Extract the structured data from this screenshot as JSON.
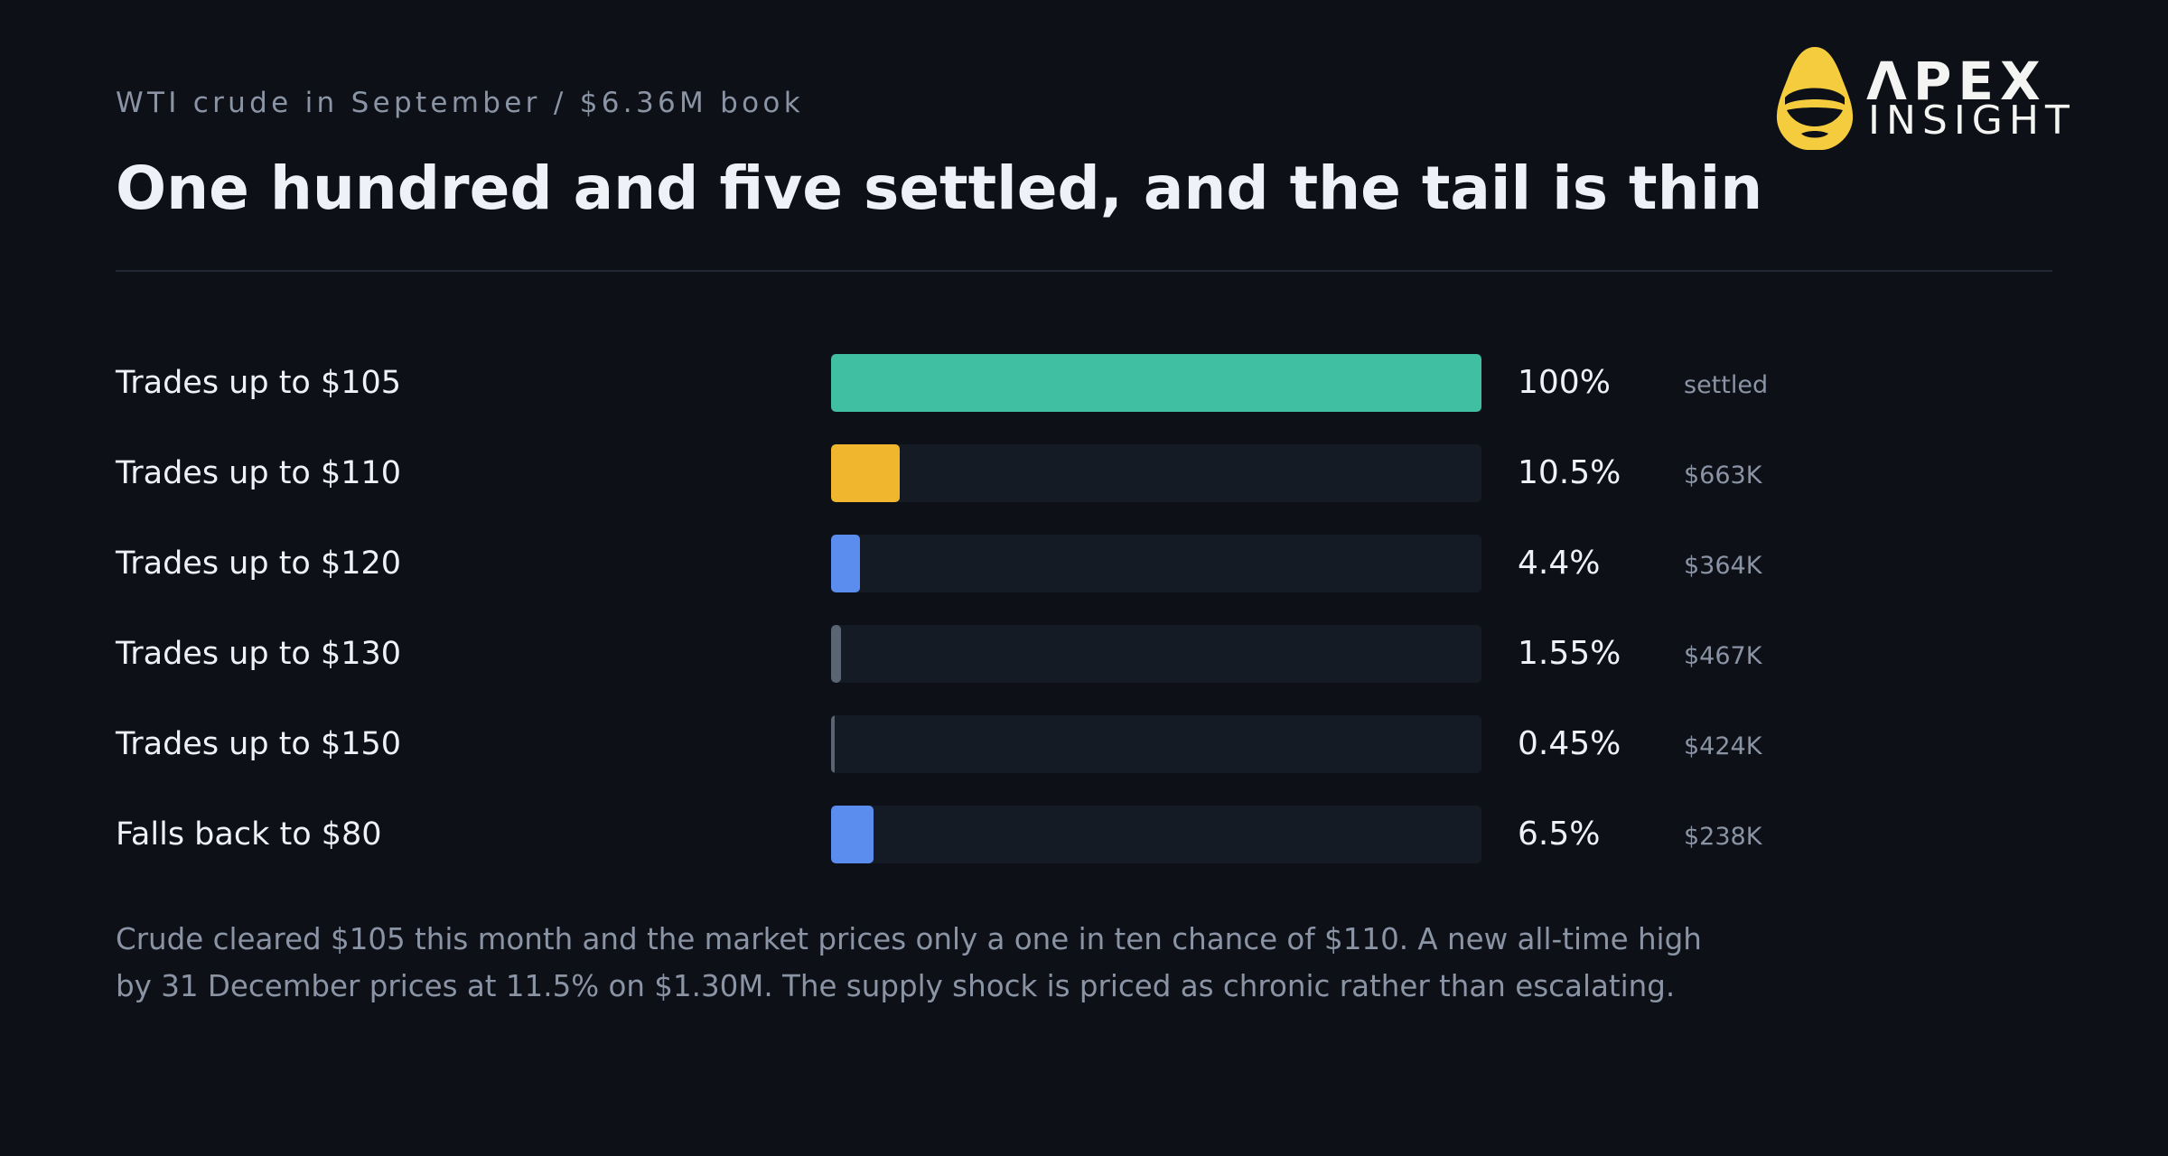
{
  "header": {
    "kicker": "WTI crude in September / $6.36M book",
    "title": "One hundred and five settled, and the tail is thin"
  },
  "logo": {
    "icon": "hooded-figure-icon",
    "word_1": "ΛPEX",
    "word_2": "INSIGHT",
    "color": "#f5cc3d"
  },
  "chart_data": {
    "type": "bar",
    "orientation": "horizontal",
    "categories": [
      "Trades up to $105",
      "Trades up to $110",
      "Trades up to $120",
      "Trades up to $130",
      "Trades up to $150",
      "Falls back to $80"
    ],
    "values": [
      100,
      10.5,
      4.4,
      1.55,
      0.45,
      6.5
    ],
    "value_labels": [
      "100%",
      "10.5%",
      "4.4%",
      "1.55%",
      "0.45%",
      "6.5%"
    ],
    "notes": [
      "settled",
      "$663K",
      "$364K",
      "$467K",
      "$424K",
      "$238K"
    ],
    "colors": [
      "#41bfa3",
      "#f0b62d",
      "#5b8def",
      "#5b6472",
      "#5b6472",
      "#5b8def"
    ],
    "xlim": [
      0,
      100
    ],
    "grid": false
  },
  "footnote": {
    "line_1": "Crude cleared $105 this month and the market prices only a one in ten chance of $110. A new all-time high",
    "line_2": "by 31 December prices at 11.5% on $1.30M. The supply shock is priced as chronic rather than escalating."
  }
}
